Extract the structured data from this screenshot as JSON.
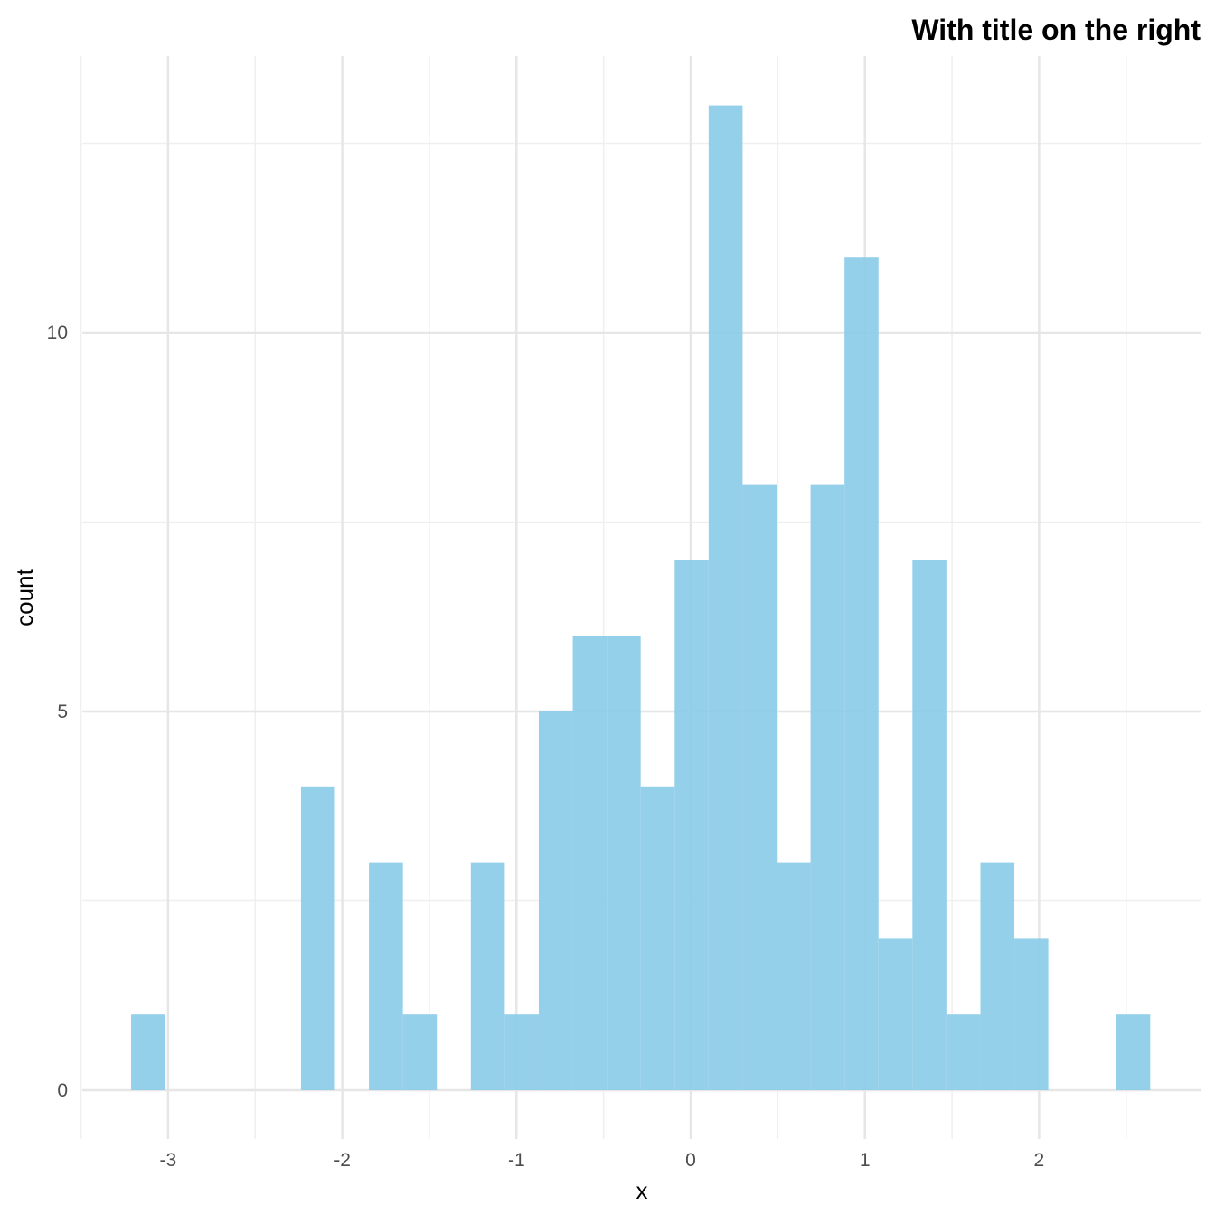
{
  "chart_data": {
    "type": "bar",
    "subtype": "histogram",
    "title": "With title on the right",
    "title_align": "right",
    "xlabel": "x",
    "ylabel": "count",
    "bins": 30,
    "bin_width": 0.195,
    "bin_start": -3.212,
    "values": [
      1,
      0,
      0,
      0,
      0,
      4,
      0,
      3,
      1,
      0,
      3,
      1,
      5,
      6,
      6,
      4,
      7,
      13,
      8,
      3,
      8,
      11,
      2,
      7,
      1,
      3,
      2,
      0,
      0,
      1
    ],
    "xlim": [
      -3.5,
      2.9
    ],
    "ylim": [
      -0.65,
      13.65
    ],
    "x_ticks": [
      -3,
      -2,
      -1,
      0,
      1,
      2
    ],
    "x_tick_labels": [
      "-3",
      "-2",
      "-1",
      "0",
      "1",
      "2"
    ],
    "y_ticks": [
      0,
      5,
      10
    ],
    "y_tick_labels": [
      "0",
      "5",
      "10"
    ],
    "grid": true,
    "legend": "none",
    "fill_color": "#87CEEB",
    "fill_alpha": 0.9
  },
  "colors": {
    "bar": "#8ccce9",
    "grid_major": "#e6e6e6",
    "grid_minor": "#efefef",
    "tick_text": "#4d4d4d"
  }
}
